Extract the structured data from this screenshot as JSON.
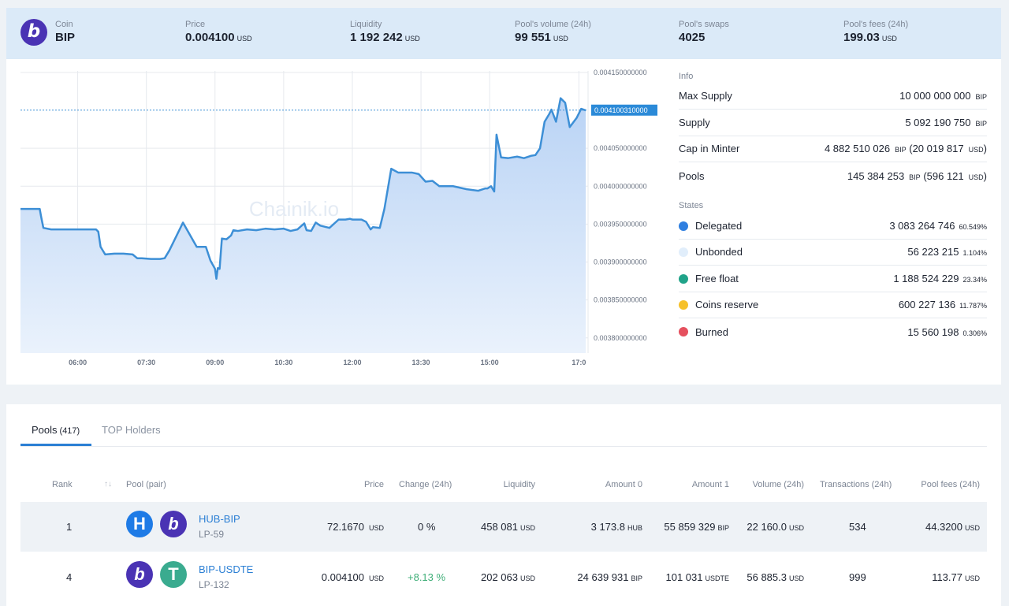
{
  "header": {
    "coin": {
      "label": "Coin",
      "value": "BIP",
      "logo_glyph": "b"
    },
    "price": {
      "label": "Price",
      "value": "0.004100",
      "unit": "USD"
    },
    "liquidity": {
      "label": "Liquidity",
      "value": "1 192 242",
      "unit": "USD"
    },
    "volume": {
      "label": "Pool's volume (24h)",
      "value": "99 551",
      "unit": "USD"
    },
    "swaps": {
      "label": "Pool's swaps",
      "value": "4025"
    },
    "fees": {
      "label": "Pool's fees (24h)",
      "value": "199.03",
      "unit": "USD"
    }
  },
  "chart_data": {
    "type": "area",
    "watermark": "Chainik.io",
    "current_value": 0.00410031,
    "current_label": "0.004100310000",
    "ylim": [
      0.00378,
      0.004152
    ],
    "y_ticks": [
      "0.004150000000",
      "0.004050000000",
      "0.004000000000",
      "0.003950000000",
      "0.003900000000",
      "0.003850000000",
      "0.003800000000"
    ],
    "y_tick_values": [
      0.00415,
      0.00405,
      0.004,
      0.00395,
      0.0039,
      0.00385,
      0.0038
    ],
    "x_ticks": [
      "06:00",
      "07:30",
      "09:00",
      "10:30",
      "12:00",
      "13:30",
      "15:00",
      "17:0"
    ],
    "x_tick_hours": [
      6.0,
      7.5,
      9.0,
      10.5,
      12.0,
      13.5,
      15.0,
      16.95
    ],
    "xlim": [
      4.75,
      17.15
    ],
    "x": [
      4.75,
      5.17,
      5.2,
      5.25,
      5.42,
      6.0,
      6.4,
      6.45,
      6.5,
      6.6,
      6.8,
      7.0,
      7.2,
      7.3,
      7.4,
      7.6,
      7.8,
      7.9,
      8.0,
      8.3,
      8.6,
      8.8,
      8.9,
      9.0,
      9.03,
      9.06,
      9.1,
      9.15,
      9.25,
      9.35,
      9.4,
      9.5,
      9.7,
      9.9,
      10.1,
      10.3,
      10.5,
      10.65,
      10.8,
      10.95,
      11.0,
      11.1,
      11.2,
      11.3,
      11.5,
      11.7,
      11.85,
      11.95,
      12.0,
      12.1,
      12.2,
      12.3,
      12.4,
      12.45,
      12.6,
      12.7,
      12.85,
      13.0,
      13.3,
      13.45,
      13.6,
      13.75,
      13.9,
      14.2,
      14.5,
      14.75,
      14.9,
      14.95,
      15.03,
      15.1,
      15.15,
      15.25,
      15.4,
      15.6,
      15.75,
      15.9,
      16.0,
      16.1,
      16.2,
      16.3,
      16.35,
      16.45,
      16.55,
      16.65,
      16.75,
      16.9,
      17.0,
      17.1
    ],
    "y": [
      0.00397,
      0.00397,
      0.00396,
      0.003945,
      0.003943,
      0.003943,
      0.003943,
      0.00394,
      0.00392,
      0.00391,
      0.003911,
      0.003911,
      0.00391,
      0.003905,
      0.003905,
      0.003904,
      0.003904,
      0.003905,
      0.003915,
      0.003952,
      0.00392,
      0.00392,
      0.003902,
      0.003891,
      0.003878,
      0.003892,
      0.003891,
      0.003931,
      0.00393,
      0.003935,
      0.003942,
      0.003941,
      0.003943,
      0.003942,
      0.003944,
      0.003943,
      0.003944,
      0.003941,
      0.003943,
      0.003951,
      0.003942,
      0.003941,
      0.003952,
      0.003948,
      0.003945,
      0.003956,
      0.003956,
      0.003957,
      0.003956,
      0.003956,
      0.003956,
      0.003953,
      0.003943,
      0.003946,
      0.003945,
      0.00397,
      0.004023,
      0.004018,
      0.004018,
      0.004016,
      0.004006,
      0.004007,
      0.004,
      0.004,
      0.003996,
      0.003994,
      0.003997,
      0.003997,
      0.004,
      0.003993,
      0.004068,
      0.004038,
      0.004037,
      0.004039,
      0.004037,
      0.00404,
      0.004041,
      0.00405,
      0.004085,
      0.004095,
      0.004101,
      0.004085,
      0.004116,
      0.00411,
      0.004078,
      0.00409,
      0.004102,
      0.0041
    ]
  },
  "info": {
    "title": "Info",
    "rows": [
      {
        "label": "Max Supply",
        "value": "10 000 000 000",
        "unit": "BIP"
      },
      {
        "label": "Supply",
        "value": "5 092 190 750",
        "unit": "BIP"
      },
      {
        "label": "Cap in Minter",
        "value": "4 882 510 026",
        "unit": "BIP",
        "extra": "(20 019 817",
        "extra_unit": "USD",
        "extra_close": ")"
      },
      {
        "label": "Pools",
        "value": "145 384 253",
        "unit": "BIP",
        "extra": "(596 121",
        "extra_unit": "USD",
        "extra_close": ")"
      }
    ]
  },
  "states": {
    "title": "States",
    "rows": [
      {
        "label": "Delegated",
        "value": "3 083 264 746",
        "pct": "60.549%",
        "color": "#2f7fe0"
      },
      {
        "label": "Unbonded",
        "value": "56 223 215",
        "pct": "1.104%",
        "color": "#e1eefb"
      },
      {
        "label": "Free float",
        "value": "1 188 524 229",
        "pct": "23.34%",
        "color": "#20a389"
      },
      {
        "label": "Coins reserve",
        "value": "600 227 136",
        "pct": "11.787%",
        "color": "#f6c12b"
      },
      {
        "label": "Burned",
        "value": "15 560 198",
        "pct": "0.306%",
        "color": "#e5505e"
      }
    ]
  },
  "tabs": [
    {
      "label": "Pools",
      "count": "(417)"
    },
    {
      "label": "TOP Holders"
    }
  ],
  "table": {
    "headers": [
      "Rank",
      "Pool (pair)",
      "Price",
      "Change (24h)",
      "Liquidity",
      "Amount 0",
      "Amount 1",
      "Volume (24h)",
      "Transactions (24h)",
      "Pool fees (24h)"
    ],
    "sort_icon": "↑↓",
    "rows": [
      {
        "rank": "1",
        "icon0": "H",
        "icon0_color": "#1e7be6",
        "icon1": "b",
        "icon1_color": "#4a33b4",
        "pair": "HUB-BIP",
        "lp": "LP-59",
        "price": "72.1670",
        "price_unit": "USD",
        "change": "0 %",
        "change_color": "#1d2330",
        "liquidity": "458 081",
        "liquidity_unit": "USD",
        "amount0": "3 173.8",
        "amount0_unit": "HUB",
        "amount1": "55 859 329",
        "amount1_unit": "BIP",
        "volume": "22 160.0",
        "volume_unit": "USD",
        "transactions": "534",
        "fees": "44.3200",
        "fees_unit": "USD"
      },
      {
        "rank": "4",
        "icon0": "b",
        "icon0_color": "#4a33b4",
        "icon1": "T",
        "icon1_color": "#3aab8f",
        "pair": "BIP-USDTE",
        "lp": "LP-132",
        "price": "0.004100",
        "price_unit": "USD",
        "change": "+8.13 %",
        "change_color": "#3fae78",
        "liquidity": "202 063",
        "liquidity_unit": "USD",
        "amount0": "24 639 931",
        "amount0_unit": "BIP",
        "amount1": "101 031",
        "amount1_unit": "USDTE",
        "volume": "56 885.3",
        "volume_unit": "USD",
        "transactions": "999",
        "fees": "113.77",
        "fees_unit": "USD"
      }
    ]
  }
}
